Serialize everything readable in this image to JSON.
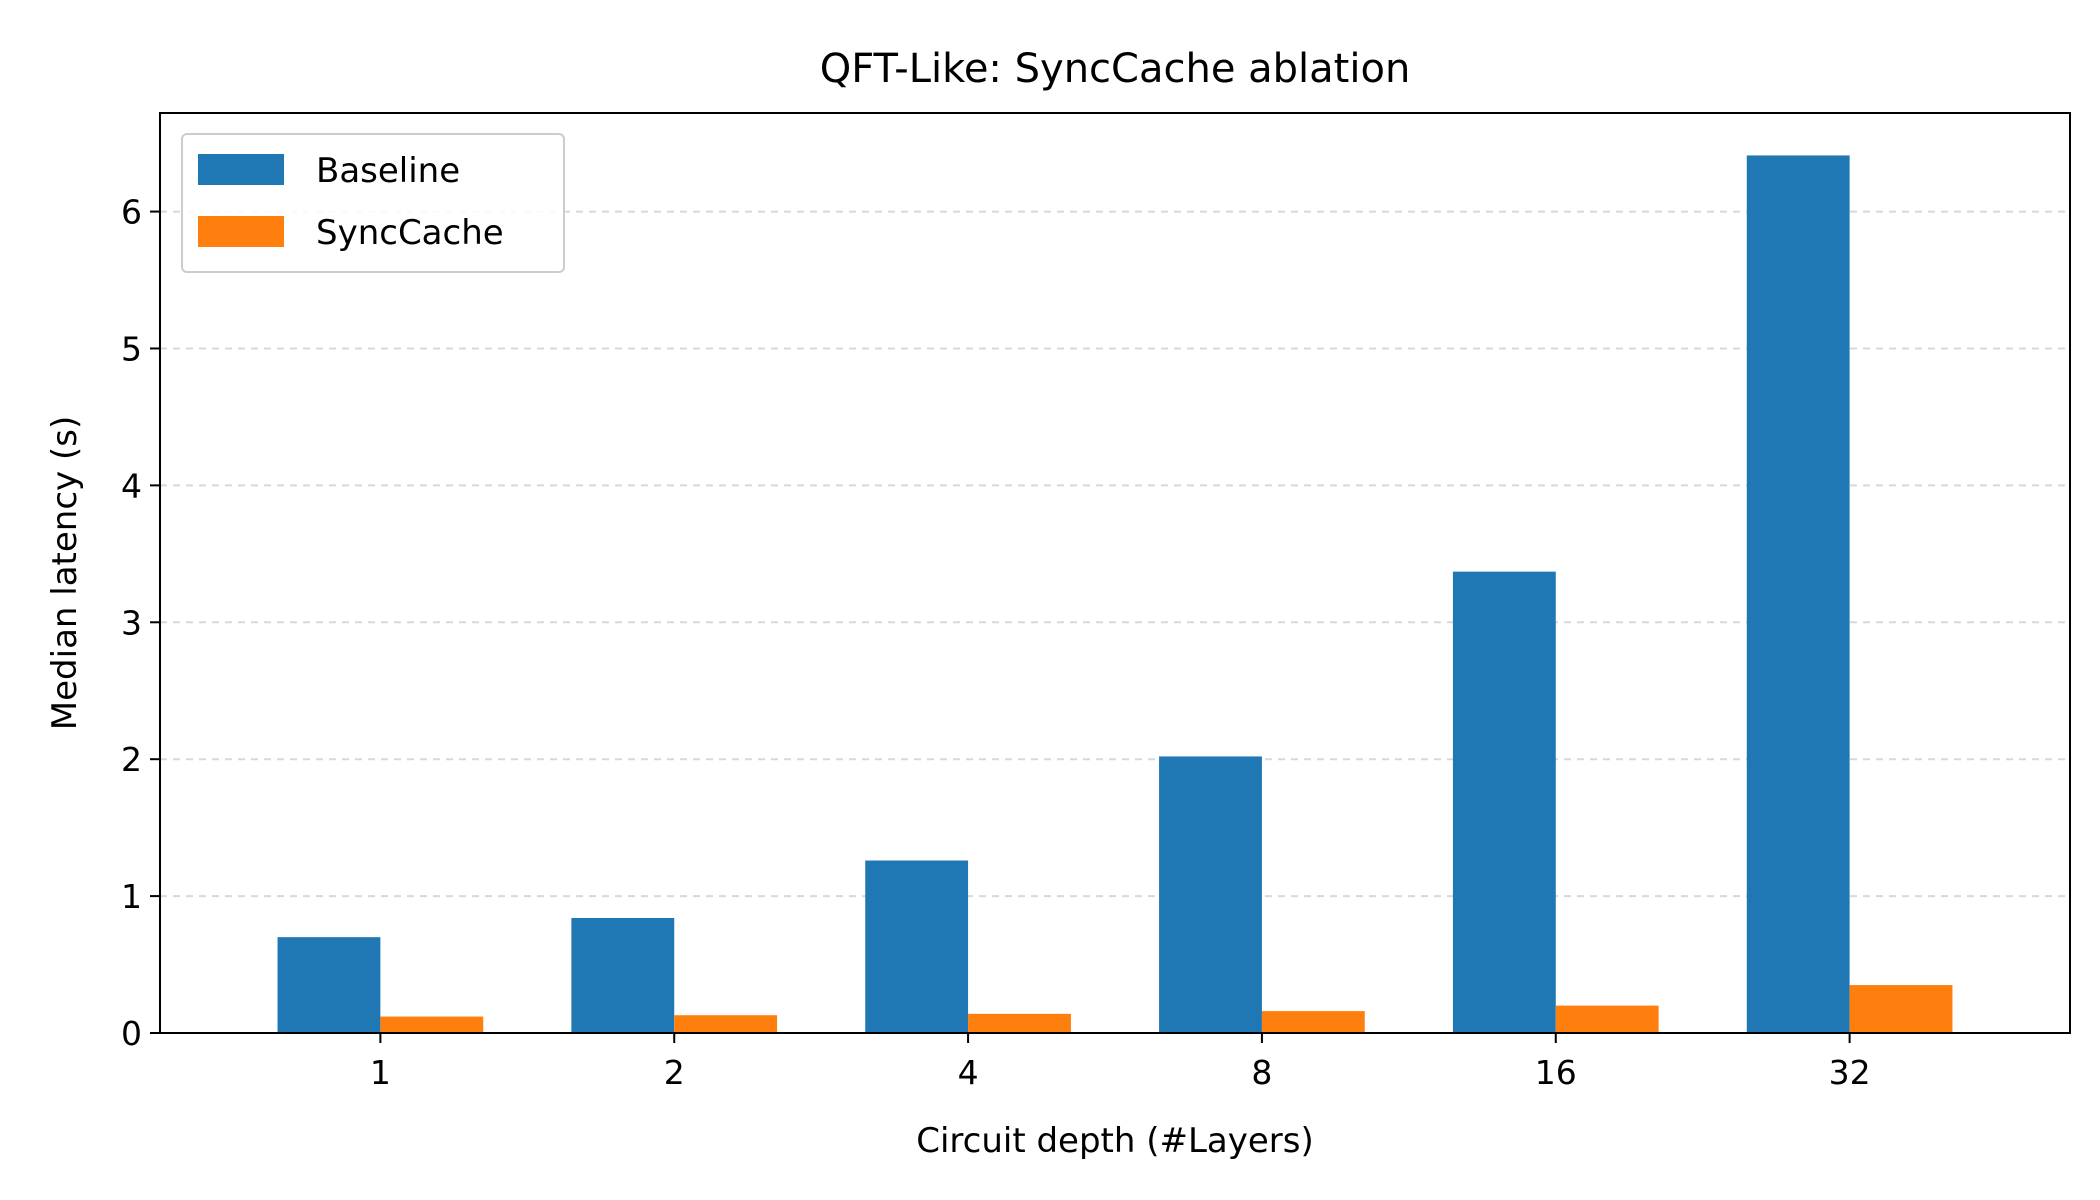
{
  "chart_data": {
    "type": "bar",
    "title": "QFT-Like: SyncCache ablation",
    "xlabel": "Circuit depth (#Layers)",
    "ylabel": "Median latency (s)",
    "categories": [
      "1",
      "2",
      "4",
      "8",
      "16",
      "32"
    ],
    "series": [
      {
        "name": "Baseline",
        "color": "#1f77b4",
        "values": [
          0.7,
          0.84,
          1.26,
          2.02,
          3.37,
          6.41
        ]
      },
      {
        "name": "SyncCache",
        "color": "#ff7f0e",
        "values": [
          0.12,
          0.13,
          0.14,
          0.16,
          0.2,
          0.35
        ]
      }
    ],
    "ylim": [
      0,
      6.72
    ],
    "yticks": [
      0,
      1,
      2,
      3,
      4,
      5,
      6
    ],
    "grid": "y-dashed",
    "legend_position": "top-left"
  }
}
